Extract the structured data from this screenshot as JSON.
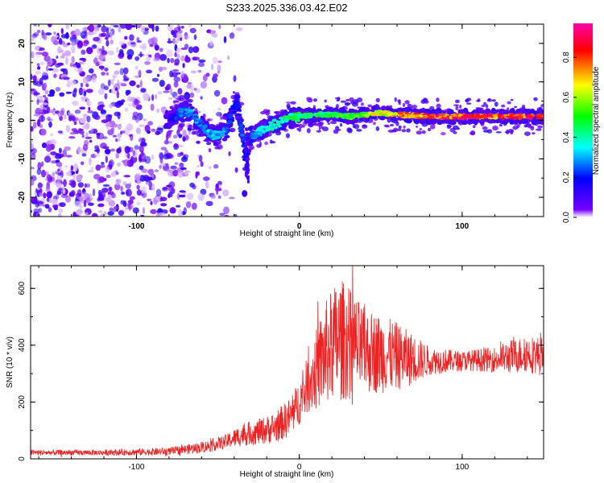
{
  "title": "S233.2025.336.03.42.E02",
  "chart_data": [
    {
      "type": "heatmap",
      "name": "spectrogram",
      "xlabel": "Height of straight line (km)",
      "ylabel": "Frequency (Hz)",
      "xlim": [
        -165,
        150
      ],
      "ylim": [
        -25,
        25
      ],
      "xticks": [
        -100,
        0,
        100
      ],
      "xtick_labels": [
        "-100",
        "0",
        "100"
      ],
      "yticks": [
        -20,
        -10,
        0,
        10,
        20
      ],
      "ytick_labels": [
        "-20",
        "-10",
        "0",
        "10",
        "20"
      ],
      "colorbar": {
        "label": "Normalized spectral amplitude",
        "range": [
          0,
          0.97
        ],
        "ticks": [
          0,
          0.2,
          0.4,
          0.6,
          0.8
        ],
        "tick_labels": [
          "0.0",
          "0.2",
          "0.4",
          "0.6",
          "0.8"
        ],
        "colormap": "rainbow",
        "colors": [
          "#ffffff",
          "#7700ff",
          "#0000ff",
          "#00ffff",
          "#00ff00",
          "#ffff00",
          "#ff0000",
          "#ff00aa"
        ]
      },
      "ridge": {
        "x": [
          -80,
          -75,
          -70,
          -65,
          -60,
          -55,
          -50,
          -45,
          -40,
          -38,
          -35,
          -33,
          -30,
          -25,
          -20,
          -15,
          -10,
          0,
          10,
          20,
          30,
          40,
          50,
          60,
          80,
          100,
          120,
          150
        ],
        "y": [
          0.5,
          1.5,
          2.5,
          1.0,
          -1.5,
          -3.5,
          -4.0,
          -2.5,
          3.0,
          5.0,
          -4.0,
          -9.5,
          -4.0,
          -3.0,
          -2.0,
          -1.0,
          0.0,
          1.0,
          1.5,
          1.5,
          1.0,
          1.5,
          2.0,
          1.5,
          1.0,
          1.0,
          1.0,
          1.0
        ],
        "amplitude": [
          0.15,
          0.25,
          0.3,
          0.3,
          0.3,
          0.35,
          0.35,
          0.3,
          0.2,
          0.2,
          0.3,
          0.2,
          0.3,
          0.35,
          0.4,
          0.4,
          0.45,
          0.5,
          0.5,
          0.55,
          0.6,
          0.65,
          0.7,
          0.8,
          0.9,
          0.92,
          0.9,
          0.9
        ]
      }
    },
    {
      "type": "line",
      "name": "snr",
      "xlabel": "Height of straight line (km)",
      "ylabel": "SNR (10 * v/v)",
      "xlim": [
        -165,
        150
      ],
      "ylim": [
        0,
        680
      ],
      "xticks": [
        -100,
        0,
        100
      ],
      "xtick_labels": [
        "-100",
        "0",
        "100"
      ],
      "yticks": [
        0,
        200,
        400,
        600
      ],
      "ytick_labels": [
        "0",
        "200",
        "400",
        "600"
      ],
      "color": "#ee2222",
      "envelope": {
        "x": [
          -165,
          -140,
          -120,
          -100,
          -80,
          -60,
          -45,
          -35,
          -25,
          -15,
          -5,
          0,
          5,
          10,
          15,
          20,
          25,
          30,
          40,
          50,
          60,
          70,
          80,
          100,
          120,
          130,
          140,
          150
        ],
        "mean": [
          22,
          22,
          22,
          24,
          26,
          40,
          60,
          85,
          95,
          110,
          150,
          200,
          260,
          310,
          360,
          400,
          420,
          410,
          380,
          370,
          360,
          350,
          345,
          345,
          350,
          360,
          370,
          360
        ],
        "spread": [
          10,
          10,
          10,
          12,
          14,
          20,
          25,
          40,
          45,
          55,
          70,
          80,
          100,
          140,
          180,
          200,
          220,
          200,
          150,
          140,
          120,
          90,
          50,
          35,
          45,
          60,
          65,
          70
        ]
      }
    }
  ]
}
